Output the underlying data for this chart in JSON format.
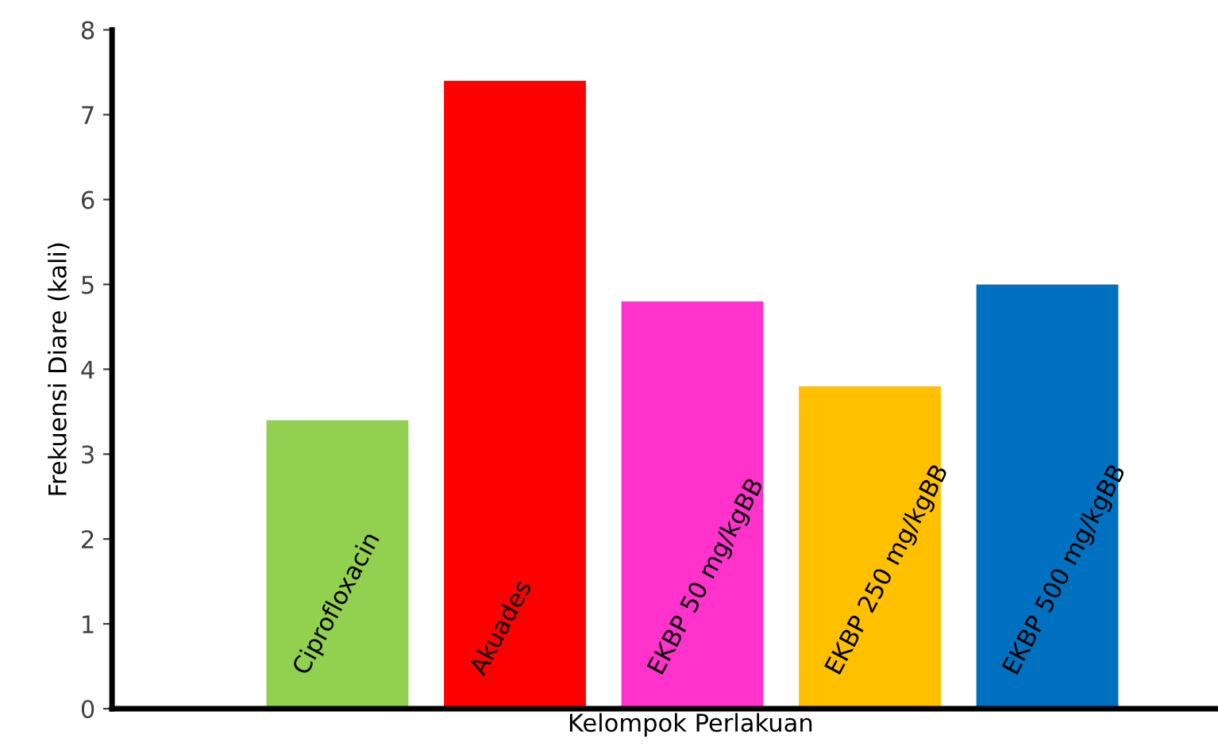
{
  "chart_data": {
    "type": "bar",
    "xlabel": "Kelompok Perlakuan",
    "ylabel": "Frekuensi Diare (kali)",
    "categories": [
      "Ciprofloxacin",
      "Akuades",
      "EKBP 50 mg/kgBB",
      "EKBP 250 mg/kgBB",
      "EKBP 500 mg/kgBB"
    ],
    "values": [
      3.4,
      7.4,
      4.8,
      3.8,
      5.0
    ],
    "colors": [
      "#92d050",
      "#ff0000",
      "#ff33cc",
      "#ffc000",
      "#0070c0"
    ],
    "ylim": [
      0,
      8
    ],
    "yticks": [
      0,
      1,
      2,
      3,
      4,
      5,
      6,
      7,
      8
    ],
    "grid": false,
    "legend": false
  }
}
